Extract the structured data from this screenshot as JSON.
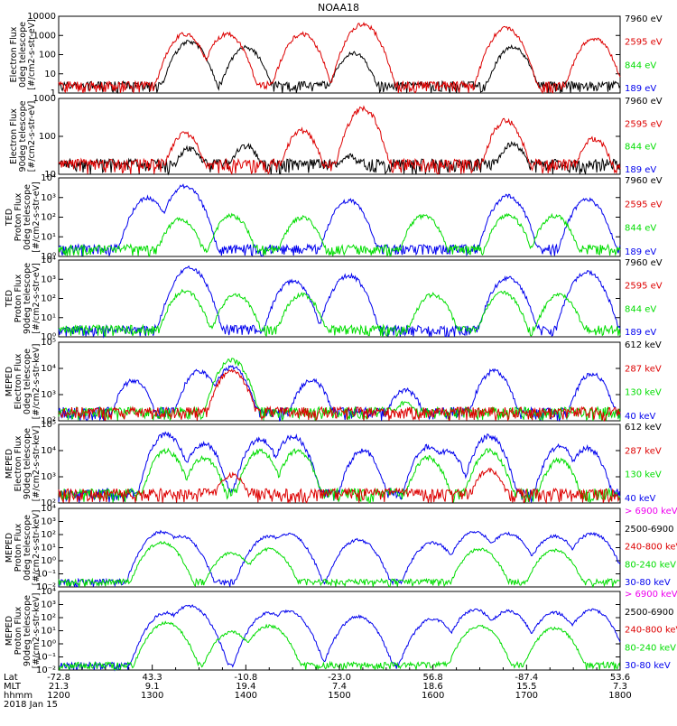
{
  "title": "NOAA18",
  "colors": {
    "black": "#000000",
    "red": "#dd0000",
    "green": "#00dd00",
    "blue": "#0000ee",
    "magenta": "#ee00ee"
  },
  "chart_data": [
    {
      "id": "p1",
      "type": "line",
      "ylabel": [
        "Electron Flux",
        "0deg telescope",
        "[#/cm2-s-str-eV]"
      ],
      "log": true,
      "yticks": [
        "1",
        "10",
        "100",
        "1000",
        "10000"
      ],
      "ylim": [
        1,
        10000
      ],
      "legend": [
        {
          "label": "7960 eV",
          "color": "black"
        },
        {
          "label": "2595 eV",
          "color": "red"
        },
        {
          "label": "844 eV",
          "color": "green"
        },
        {
          "label": "189 eV",
          "color": "blue"
        }
      ],
      "series": [
        {
          "color": "black",
          "peaks": [
            [
              13.4,
              600
            ],
            [
              14.0,
              300
            ],
            [
              15.15,
              150
            ],
            [
              16.85,
              300
            ]
          ]
        },
        {
          "color": "red",
          "peaks": [
            [
              13.35,
              1500
            ],
            [
              13.8,
              1500
            ],
            [
              14.6,
              1500
            ],
            [
              15.25,
              5000
            ],
            [
              16.78,
              3000
            ],
            [
              17.72,
              900
            ]
          ]
        }
      ]
    },
    {
      "id": "p2",
      "type": "line",
      "ylabel": [
        "Electron Flux",
        "90deg telescope",
        "[#/cm2-s-str-eV]"
      ],
      "log": true,
      "yticks": [
        "10",
        "100",
        "1000"
      ],
      "ylim": [
        3,
        3000
      ],
      "legend": [
        {
          "label": "7960 eV",
          "color": "black"
        },
        {
          "label": "2595 eV",
          "color": "red"
        },
        {
          "label": "844 eV",
          "color": "green"
        },
        {
          "label": "189 eV",
          "color": "blue"
        }
      ],
      "series": [
        {
          "color": "black",
          "peaks": [
            [
              13.4,
              40
            ],
            [
              14.0,
              50
            ],
            [
              15.1,
              20
            ],
            [
              16.85,
              60
            ]
          ]
        },
        {
          "color": "red",
          "peaks": [
            [
              13.35,
              150
            ],
            [
              14.6,
              200
            ],
            [
              15.25,
              1500
            ],
            [
              16.78,
              500
            ],
            [
              17.72,
              100
            ]
          ]
        }
      ]
    },
    {
      "id": "p3",
      "type": "line",
      "ylabel": [
        "TED",
        "Proton Flux",
        "0deg telescope",
        "[#/cm2-s-str-eV]"
      ],
      "log": true,
      "yticks": [
        "10⁰",
        "10¹",
        "10²",
        "10³",
        "10⁴"
      ],
      "ylim": [
        1,
        10000
      ],
      "legend": [
        {
          "label": "7960 eV",
          "color": "black"
        },
        {
          "label": "2595 eV",
          "color": "red"
        },
        {
          "label": "844 eV",
          "color": "green"
        },
        {
          "label": "189 eV",
          "color": "blue"
        }
      ],
      "series": [
        {
          "color": "blue",
          "peaks": [
            [
              12.95,
              1200
            ],
            [
              13.35,
              5000
            ],
            [
              15.1,
              900
            ],
            [
              16.8,
              1500
            ],
            [
              17.65,
              1000
            ]
          ]
        },
        {
          "color": "green",
          "peaks": [
            [
              13.3,
              100
            ],
            [
              13.85,
              150
            ],
            [
              14.6,
              120
            ],
            [
              15.9,
              150
            ],
            [
              16.8,
              150
            ],
            [
              17.3,
              150
            ]
          ]
        }
      ]
    },
    {
      "id": "p4",
      "type": "line",
      "ylabel": [
        "TED",
        "Proton Flux",
        "90deg telescope",
        "[#/cm2-s-str-eV]"
      ],
      "log": true,
      "yticks": [
        "10⁰",
        "10¹",
        "10²",
        "10³",
        "10⁴"
      ],
      "ylim": [
        1,
        10000
      ],
      "legend": [
        {
          "label": "7960 eV",
          "color": "black"
        },
        {
          "label": "2595 eV",
          "color": "red"
        },
        {
          "label": "844 eV",
          "color": "green"
        },
        {
          "label": "189 eV",
          "color": "blue"
        }
      ],
      "series": [
        {
          "color": "blue",
          "peaks": [
            [
              13.4,
              5000
            ],
            [
              14.5,
              1000
            ],
            [
              15.1,
              2000
            ],
            [
              16.8,
              1500
            ],
            [
              17.65,
              3000
            ]
          ]
        },
        {
          "color": "green",
          "peaks": [
            [
              13.35,
              300
            ],
            [
              13.9,
              200
            ],
            [
              14.6,
              200
            ],
            [
              16.0,
              200
            ],
            [
              16.75,
              250
            ],
            [
              17.35,
              200
            ]
          ]
        }
      ]
    },
    {
      "id": "p5",
      "type": "line",
      "ylabel": [
        "MEPED",
        "Electron Flux",
        "0deg telescope",
        "[#/cm2-s-str-keV]"
      ],
      "log": true,
      "yticks": [
        "10²",
        "10³",
        "10⁴",
        "10⁵"
      ],
      "ylim": [
        100,
        300000
      ],
      "legend": [
        {
          "label": "612 keV",
          "color": "black"
        },
        {
          "label": "287 keV",
          "color": "red"
        },
        {
          "label": "130 keV",
          "color": "green"
        },
        {
          "label": "40 keV",
          "color": "blue"
        }
      ],
      "series": [
        {
          "color": "blue",
          "peaks": [
            [
              12.8,
              8000
            ],
            [
              13.5,
              20000
            ],
            [
              13.85,
              30000
            ],
            [
              14.7,
              8000
            ],
            [
              15.7,
              3000
            ],
            [
              16.65,
              20000
            ],
            [
              17.7,
              15000
            ]
          ]
        },
        {
          "color": "green",
          "peaks": [
            [
              13.85,
              60000
            ],
            [
              15.7,
              800
            ]
          ]
        },
        {
          "color": "red",
          "peaks": [
            [
              13.85,
              20000
            ]
          ]
        }
      ]
    },
    {
      "id": "p6",
      "type": "line",
      "ylabel": [
        "MEPED",
        "Electron Flux",
        "90deg telescope",
        "[#/cm2-s-str-keV]"
      ],
      "log": true,
      "yticks": [
        "10²",
        "10³",
        "10⁴",
        "10⁵"
      ],
      "ylim": [
        100,
        200000
      ],
      "legend": [
        {
          "label": "612 keV",
          "color": "black"
        },
        {
          "label": "287 keV",
          "color": "red"
        },
        {
          "label": "130 keV",
          "color": "green"
        },
        {
          "label": "40 keV",
          "color": "blue"
        }
      ],
      "series": [
        {
          "color": "blue",
          "peaks": [
            [
              13.15,
              100000
            ],
            [
              13.55,
              40000
            ],
            [
              14.15,
              60000
            ],
            [
              14.5,
              80000
            ],
            [
              15.25,
              20000
            ],
            [
              15.95,
              30000
            ],
            [
              16.15,
              20000
            ],
            [
              16.6,
              80000
            ],
            [
              17.35,
              30000
            ],
            [
              17.65,
              25000
            ]
          ]
        },
        {
          "color": "green",
          "peaks": [
            [
              13.15,
              20000
            ],
            [
              13.55,
              10000
            ],
            [
              14.15,
              20000
            ],
            [
              14.55,
              20000
            ],
            [
              15.95,
              10000
            ],
            [
              16.6,
              20000
            ],
            [
              17.35,
              8000
            ]
          ]
        },
        {
          "color": "red",
          "peaks": [
            [
              13.85,
              2000
            ],
            [
              15.65,
              400
            ],
            [
              16.6,
              3000
            ]
          ]
        }
      ]
    },
    {
      "id": "p7",
      "type": "line",
      "ylabel": [
        "MEPED",
        "Proton Flux",
        "0deg telescope",
        "[#/cm2-s-str-keV]"
      ],
      "log": true,
      "yticks": [
        "10⁻²",
        "10⁻¹",
        "10⁰",
        "10¹",
        "10²",
        "10³",
        "10⁴"
      ],
      "ylim": [
        0.01,
        10000
      ],
      "legend": [
        {
          "label": "> 6900 keV",
          "color": "magenta"
        },
        {
          "label": "2500-6900",
          "color": "black"
        },
        {
          "label": "240-800 keV",
          "color": "red"
        },
        {
          "label": "80-240 keV",
          "color": "green"
        },
        {
          "label": "30-80 keV",
          "color": "blue"
        }
      ],
      "series": [
        {
          "color": "blue",
          "peaks": [
            [
              13.1,
              200
            ],
            [
              13.3,
              100
            ],
            [
              14.25,
              100
            ],
            [
              14.45,
              150
            ],
            [
              15.2,
              50
            ],
            [
              16.0,
              30
            ],
            [
              16.45,
              200
            ],
            [
              16.8,
              150
            ],
            [
              17.3,
              100
            ],
            [
              17.7,
              150
            ]
          ]
        },
        {
          "color": "green",
          "peaks": [
            [
              13.1,
              30
            ],
            [
              13.85,
              5
            ],
            [
              14.25,
              10
            ],
            [
              16.5,
              10
            ],
            [
              17.3,
              8
            ]
          ]
        }
      ]
    },
    {
      "id": "p8",
      "type": "line",
      "ylabel": [
        "MEPED",
        "Proton Flux",
        "90deg telescope",
        "[#/cm2-s-str-keV]"
      ],
      "log": true,
      "yticks": [
        "10⁻²",
        "10⁻¹",
        "10⁰",
        "10¹",
        "10²",
        "10³",
        "10⁴"
      ],
      "ylim": [
        0.01,
        10000
      ],
      "legend": [
        {
          "label": "> 6900 keV",
          "color": "magenta"
        },
        {
          "label": "2500-6900",
          "color": "black"
        },
        {
          "label": "240-800 keV",
          "color": "red"
        },
        {
          "label": "80-240 keV",
          "color": "green"
        },
        {
          "label": "30-80 keV",
          "color": "blue"
        }
      ],
      "series": [
        {
          "color": "blue",
          "peaks": [
            [
              13.15,
              300
            ],
            [
              13.4,
              1000
            ],
            [
              14.25,
              300
            ],
            [
              14.45,
              400
            ],
            [
              15.2,
              150
            ],
            [
              16.0,
              100
            ],
            [
              16.45,
              500
            ],
            [
              16.8,
              400
            ],
            [
              17.3,
              300
            ],
            [
              17.7,
              500
            ]
          ]
        },
        {
          "color": "green",
          "peaks": [
            [
              13.15,
              50
            ],
            [
              13.85,
              10
            ],
            [
              14.25,
              30
            ],
            [
              16.5,
              30
            ],
            [
              17.3,
              20
            ]
          ]
        }
      ]
    }
  ],
  "x_axis": {
    "xlim": [
      12.0,
      18.0
    ],
    "row_labels": [
      "Lat",
      "MLT",
      "hhmm"
    ],
    "date": "2018 Jan 15",
    "columns": [
      {
        "x": 12.0,
        "lat": "-72.8",
        "mlt": "21.3",
        "hhmm": "1200"
      },
      {
        "x": 13.0,
        "lat": "43.3",
        "mlt": "9.1",
        "hhmm": "1300"
      },
      {
        "x": 14.0,
        "lat": "-10.8",
        "mlt": "19.4",
        "hhmm": "1400"
      },
      {
        "x": 15.0,
        "lat": "-23.0",
        "mlt": "7.4",
        "hhmm": "1500"
      },
      {
        "x": 16.0,
        "lat": "56.8",
        "mlt": "18.6",
        "hhmm": "1600"
      },
      {
        "x": 17.0,
        "lat": "-87.4",
        "mlt": "15.5",
        "hhmm": "1700"
      },
      {
        "x": 18.0,
        "lat": "53.6",
        "mlt": "7.3",
        "hhmm": "1800"
      }
    ]
  }
}
